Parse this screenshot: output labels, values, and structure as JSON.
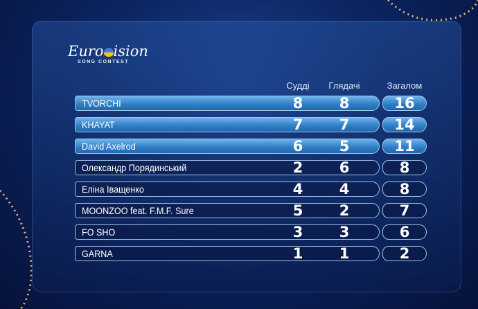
{
  "logo": {
    "text": "Eurovision",
    "subtitle": "SONG CONTEST"
  },
  "headers": {
    "judges": "Судді",
    "viewers": "Глядачі",
    "total": "Загалом"
  },
  "rows": [
    {
      "name": "TVORCHI",
      "judges": "8",
      "viewers": "8",
      "total": "16",
      "highlight": true
    },
    {
      "name": "KHAYAT",
      "judges": "7",
      "viewers": "7",
      "total": "14",
      "highlight": true
    },
    {
      "name": "David Axelrod",
      "judges": "6",
      "viewers": "5",
      "total": "11",
      "highlight": true
    },
    {
      "name": "Олександр Порядинський",
      "judges": "2",
      "viewers": "6",
      "total": "8",
      "highlight": false
    },
    {
      "name": "Еліна Іващенко",
      "judges": "4",
      "viewers": "4",
      "total": "8",
      "highlight": false
    },
    {
      "name": "MOONZOO feat. F.M.F. Sure",
      "judges": "5",
      "viewers": "2",
      "total": "7",
      "highlight": false
    },
    {
      "name": "FO SHO",
      "judges": "3",
      "viewers": "3",
      "total": "6",
      "highlight": false
    },
    {
      "name": "GARNA",
      "judges": "1",
      "viewers": "1",
      "total": "2",
      "highlight": false
    }
  ],
  "colors": {
    "highlight": "#3d8fd6",
    "background": "#0c2460",
    "outline": "#9fc4ec"
  }
}
